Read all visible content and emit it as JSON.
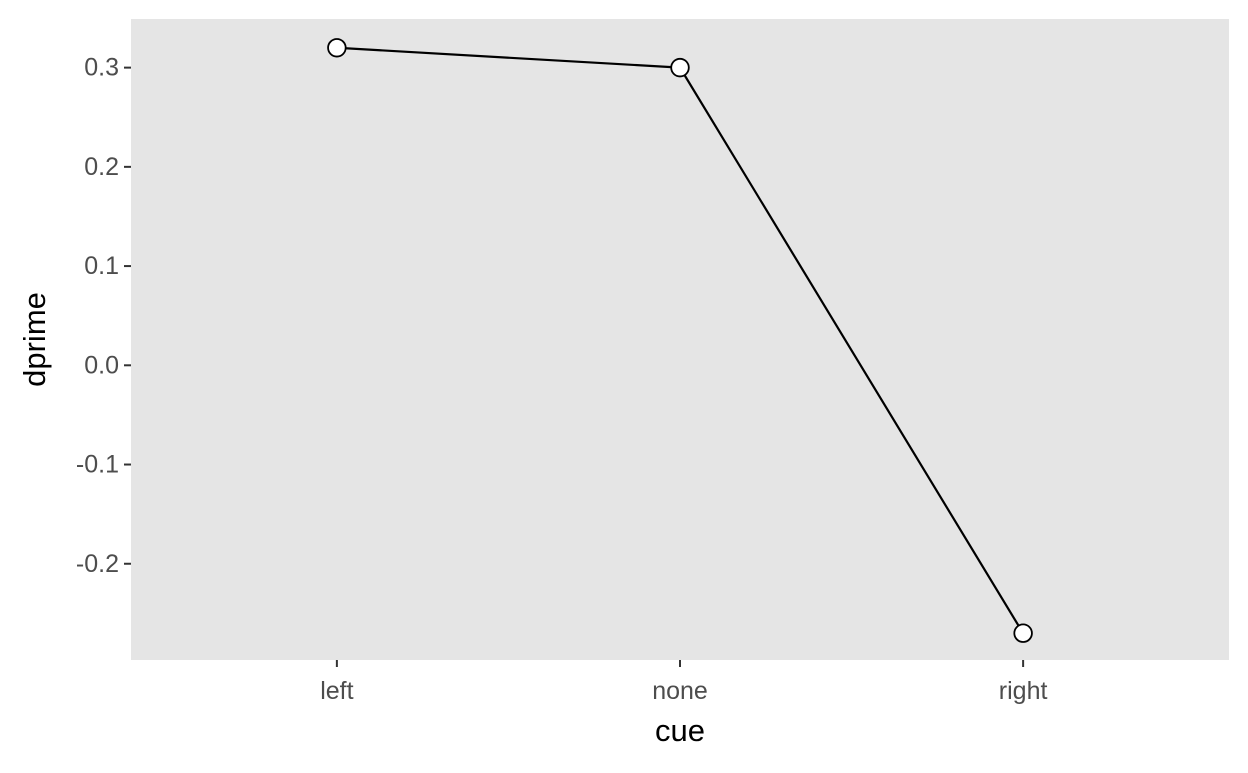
{
  "chart_data": {
    "type": "line",
    "title": "",
    "xlabel": "cue",
    "ylabel": "dprime",
    "categories": [
      "left",
      "none",
      "right"
    ],
    "values": [
      0.32,
      0.3,
      -0.27
    ],
    "ylim": [
      -0.297,
      0.349
    ],
    "yticks": [
      -0.2,
      -0.1,
      0.0,
      0.1,
      0.2,
      0.3
    ],
    "ytick_labels": [
      "-0.2",
      "-0.1",
      "0.0",
      "0.1",
      "0.2",
      "0.3"
    ],
    "grid": false,
    "legend": "none",
    "colors": {
      "panel_background": "#e5e5e5",
      "line": "#000000",
      "point_fill": "#ffffff",
      "point_stroke": "#000000",
      "tick_label": "#4d4d4d",
      "axis_title": "#000000",
      "tick_mark": "#333333"
    }
  }
}
